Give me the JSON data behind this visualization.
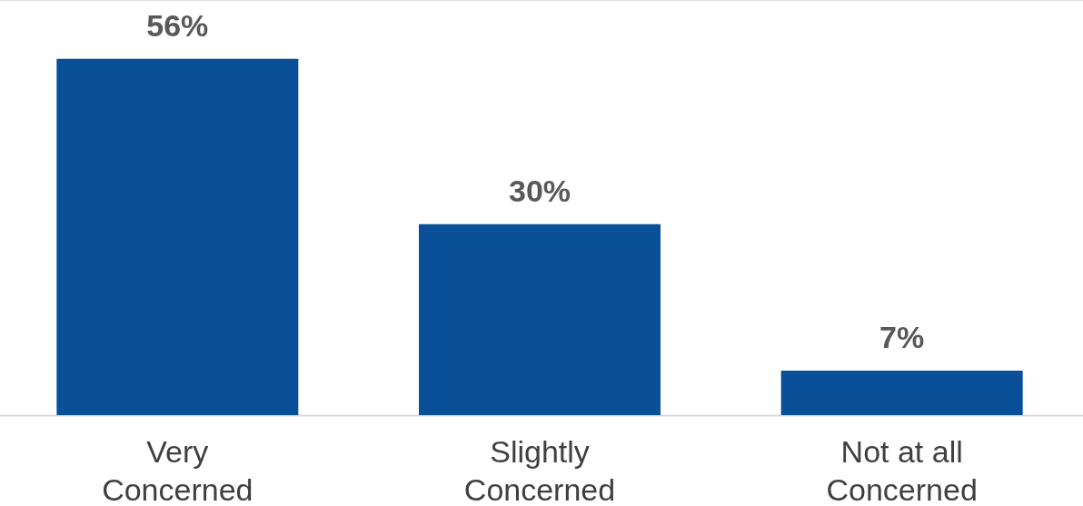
{
  "chart_data": {
    "type": "bar",
    "categories": [
      "Very Concerned",
      "Slightly Concerned",
      "Not at all Concerned"
    ],
    "values": [
      56,
      30,
      7
    ],
    "value_labels": [
      "56%",
      "30%",
      "7%"
    ],
    "color": "#0a5099"
  }
}
